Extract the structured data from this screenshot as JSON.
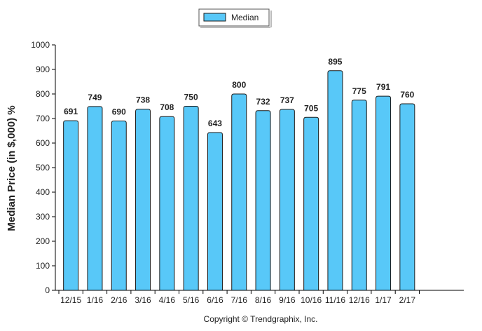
{
  "legend": {
    "label": "Median"
  },
  "footer": {
    "copyright": "Copyright © Trendgraphix, Inc."
  },
  "colors": {
    "bar_fill": "#58c8f8",
    "bar_stroke": "#1a1a1a",
    "axis": "#000000"
  },
  "chart_data": {
    "type": "bar",
    "categories": [
      "12/15",
      "1/16",
      "2/16",
      "3/16",
      "4/16",
      "5/16",
      "6/16",
      "7/16",
      "8/16",
      "9/16",
      "10/16",
      "11/16",
      "12/16",
      "1/17",
      "2/17"
    ],
    "series": [
      {
        "name": "Median",
        "values": [
          691,
          749,
          690,
          738,
          708,
          750,
          643,
          800,
          732,
          737,
          705,
          895,
          775,
          791,
          760
        ]
      }
    ],
    "ylabel": "Median Price (in $,000) %",
    "xlabel": "",
    "ylim": [
      0,
      1000
    ],
    "yticks": [
      0,
      100,
      200,
      300,
      400,
      500,
      600,
      700,
      800,
      900,
      1000
    ],
    "data_labels": true,
    "legend_position": "top-center",
    "grid": false
  }
}
